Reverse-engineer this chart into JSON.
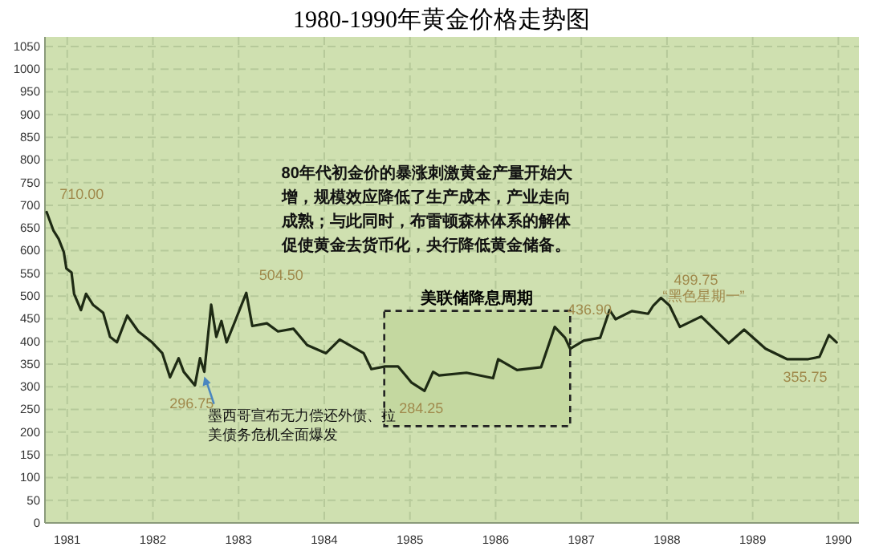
{
  "chart_data": {
    "type": "line",
    "title": "1980-1990年黄金价格走势图",
    "x": [
      1980.76,
      1980.84,
      1980.9,
      1980.96,
      1980.99,
      1981.05,
      1981.08,
      1981.16,
      1981.22,
      1981.3,
      1981.42,
      1981.5,
      1981.58,
      1981.7,
      1981.83,
      1981.99,
      1982.11,
      1982.2,
      1982.3,
      1982.36,
      1982.49,
      1982.55,
      1982.6,
      1982.68,
      1982.74,
      1982.8,
      1982.86,
      1982.96,
      1983.09,
      1983.16,
      1983.33,
      1983.46,
      1983.64,
      1983.8,
      1984.02,
      1984.18,
      1984.46,
      1984.55,
      1984.71,
      1984.86,
      1985.02,
      1985.17,
      1985.27,
      1985.34,
      1985.66,
      1985.97,
      1986.03,
      1986.25,
      1986.53,
      1986.69,
      1986.81,
      1986.87,
      1987.03,
      1987.22,
      1987.33,
      1987.4,
      1987.59,
      1987.78,
      1987.84,
      1987.93,
      1988.03,
      1988.15,
      1988.4,
      1988.72,
      1988.9,
      1989.15,
      1989.4,
      1989.65,
      1989.78,
      1989.89,
      1989.98
    ],
    "series": [
      {
        "color": "#1e2a14",
        "values": [
          685,
          644,
          626,
          597,
          561,
          552,
          505,
          469,
          505,
          481,
          463,
          410,
          398,
          457,
          422,
          398,
          374,
          321,
          363,
          333,
          303,
          363,
          333,
          481,
          410,
          445,
          398,
          445,
          507,
          434,
          440,
          422,
          428,
          392,
          374,
          404,
          374,
          339,
          345,
          345,
          309,
          291,
          333,
          325,
          331,
          319,
          361,
          337,
          343,
          432,
          408,
          384,
          402,
          408,
          469,
          449,
          467,
          461,
          479,
          496,
          479,
          432,
          455,
          396,
          426,
          384,
          361,
          361,
          366,
          414,
          398
        ]
      }
    ],
    "xlim": [
      1980.74,
      1990.24
    ],
    "xticks": [
      1981,
      1982,
      1983,
      1984,
      1985,
      1986,
      1987,
      1988,
      1989,
      1990
    ],
    "ylim": [
      0,
      1050
    ],
    "yticks": [
      0,
      50,
      100,
      150,
      200,
      250,
      300,
      350,
      400,
      450,
      500,
      550,
      600,
      650,
      700,
      750,
      800,
      850,
      900,
      950,
      1000,
      1050
    ],
    "grid": true,
    "line_style": "solid",
    "marker": "none",
    "bands": [
      {
        "axis": "x",
        "from": 1984.7,
        "to": 1986.87,
        "label": "美联储降息周期",
        "color": "#c4d8a0"
      }
    ],
    "annotations": [
      "80年代初金价的暴涨刺激黄金产量开始大增，规模效应降低了生产成本，产业走向成熟；与此同时，布雷顿森林体系的解体促使黄金去货币化，央行降低黄金储备。",
      {
        "text": "710.00",
        "x": 1980.76,
        "y": 685
      },
      {
        "text": "296.75",
        "x": 1982.49,
        "y": 303
      },
      {
        "text": "504.50",
        "x": 1983.09,
        "y": 507
      },
      {
        "text": "284.25",
        "x": 1985.17,
        "y": 291
      },
      {
        "text": "436.90",
        "x": 1986.69,
        "y": 432
      },
      {
        "text": "499.75",
        "x": 1987.93,
        "y": 496
      },
      {
        "text": "355.75",
        "x": 1989.65,
        "y": 361
      },
      {
        "text": "墨西哥宣布无力偿还外债、拉美债务危机全面爆发",
        "x": 1982.6,
        "y": 333
      },
      {
        "text": "“黑色星期一”",
        "x": 1987.8,
        "y": 461
      }
    ]
  }
}
